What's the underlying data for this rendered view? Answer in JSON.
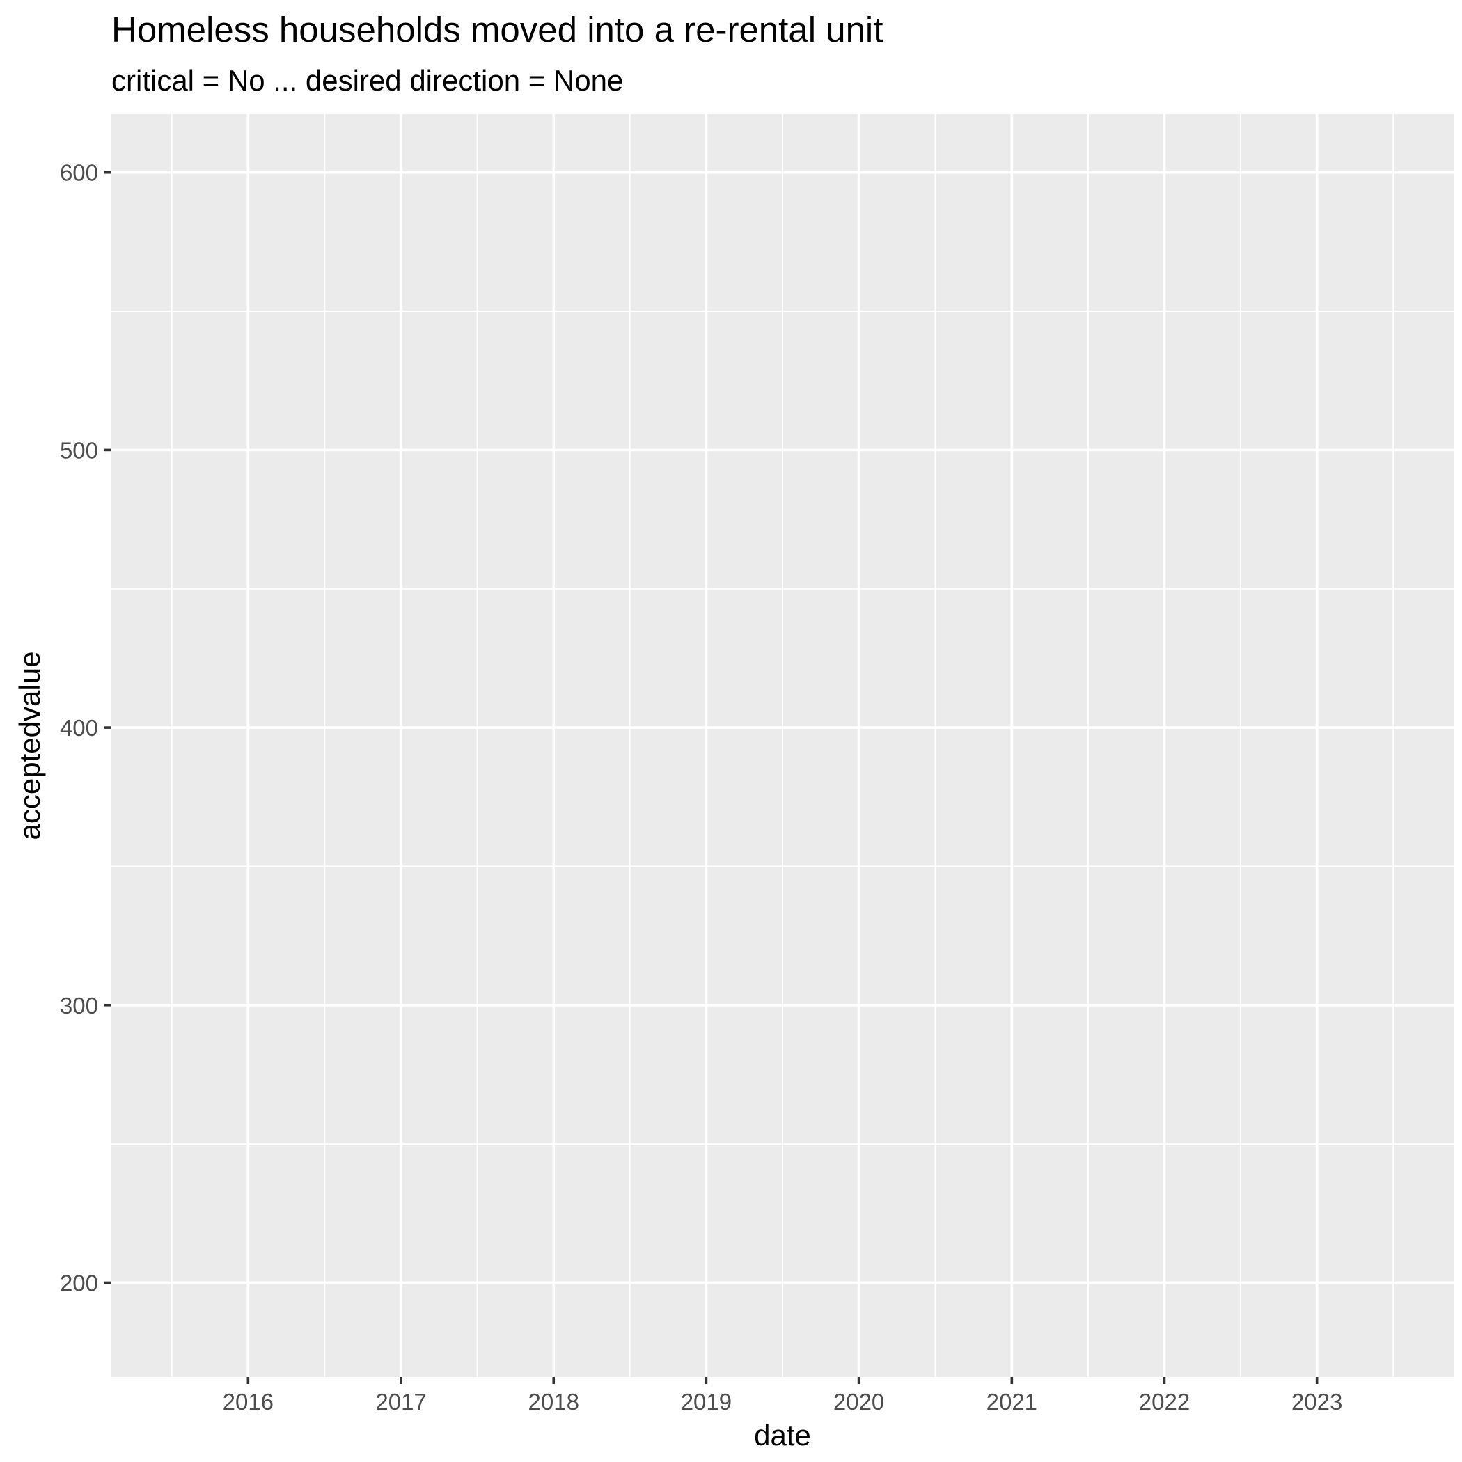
{
  "chart_data": {
    "type": "line",
    "title": "Homeless households moved into a re-rental unit",
    "subtitle": "critical = No ... desired direction = None",
    "xlabel": "date",
    "ylabel": "acceptedvalue",
    "x_ticks": [
      "2016",
      "2017",
      "2018",
      "2019",
      "2020",
      "2021",
      "2022",
      "2023"
    ],
    "y_ticks": [
      200,
      300,
      400,
      500,
      600
    ],
    "xlim": [
      "2015-02-08",
      "2023-11-24"
    ],
    "ylim": [
      166,
      621
    ],
    "series": [],
    "grid": true,
    "legend": "none",
    "colors": {
      "panel_background": "#EBEBEB",
      "grid_line": "#FFFFFF",
      "tick_mark": "#333333",
      "tick_label": "#4D4D4D",
      "text": "#000000"
    }
  }
}
